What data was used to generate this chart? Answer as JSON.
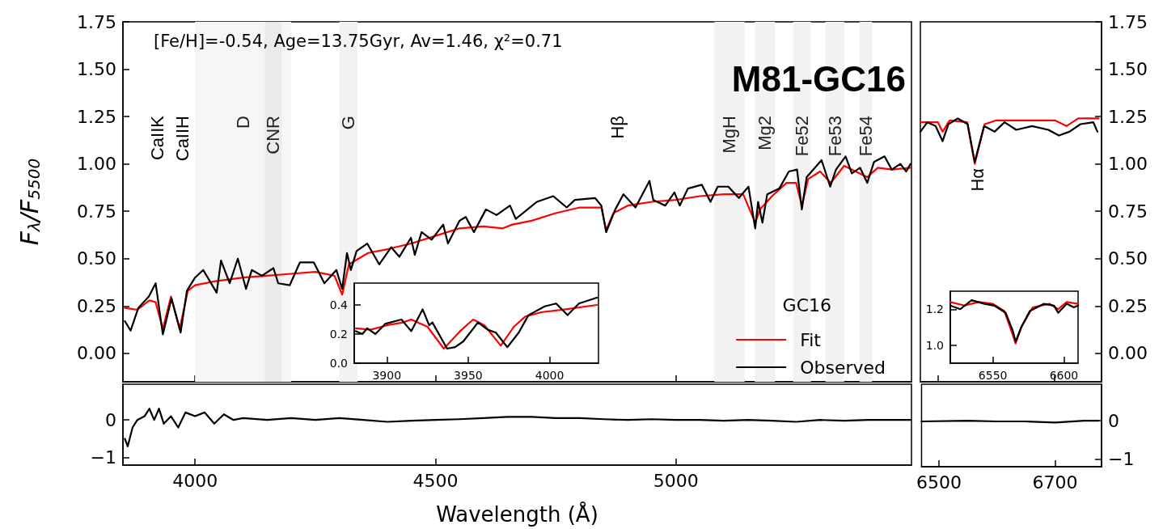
{
  "chart_data": [
    {
      "type": "line",
      "title": "M81-GC16",
      "ylabel": "F$_{λ}$/F$_{5500}$",
      "legend": "bottom right",
      "legend_title": "GC16",
      "tick_labels": "y",
      "xlim": [
        3850,
        5490
      ],
      "xticks": [
        4000,
        4500,
        5000
      ],
      "ylim": [
        -0.15,
        1.75
      ],
      "yticks": [
        {
          "value": 0,
          "label": "0.00"
        },
        {
          "value": 0.25,
          "label": "0.25"
        },
        {
          "value": 0.5,
          "label": "0.50"
        },
        {
          "value": 0.75,
          "label": "0.75"
        },
        {
          "value": 1,
          "label": "1.00"
        },
        {
          "value": 1.25,
          "label": "1.25"
        },
        {
          "value": 1.5,
          "label": "1.50"
        },
        {
          "value": 1.75,
          "label": "1.75"
        }
      ],
      "annotations": [
        "[Fe/H]=-0.54, Age=13.75Gyr, Av=1.46, χ²=0.71",
        "CaIIK",
        "CaIIH",
        "Hβ"
      ],
      "bands": [
        {
          "axis": "x",
          "from": 4000,
          "to": 4200,
          "label": "D",
          "color": "#f6f6f6"
        },
        {
          "axis": "x",
          "from": 4145,
          "to": 4180,
          "label": "CNR",
          "color": "#ebebeb"
        },
        {
          "axis": "x",
          "from": 4300,
          "to": 4338,
          "label": "G",
          "color": "#f2f2f2"
        },
        {
          "axis": "x",
          "from": 5080,
          "to": 5143,
          "label": "MgH",
          "color": "#f2f2f2"
        },
        {
          "axis": "x",
          "from": 5164,
          "to": 5206,
          "label": "Mg2",
          "color": "#f2f2f2"
        },
        {
          "axis": "x",
          "from": 5244,
          "to": 5281,
          "label": "Fe52",
          "color": "#f2f2f2"
        },
        {
          "axis": "x",
          "from": 5311,
          "to": 5350,
          "label": "Fe53",
          "color": "#f2f2f2"
        },
        {
          "axis": "x",
          "from": 5382,
          "to": 5408,
          "label": "Fe54",
          "color": "#f2f2f2"
        }
      ],
      "series": [
        {
          "name": "Fit",
          "color": "#ff0000",
          "x": [
            3854,
            3880,
            3905,
            3918,
            3933,
            3950,
            3968,
            3985,
            4000,
            4040,
            4100,
            4150,
            4200,
            4250,
            4290,
            4306,
            4320,
            4360,
            4400,
            4450,
            4500,
            4550,
            4600,
            4640,
            4660,
            4700,
            4750,
            4800,
            4845,
            4855,
            4870,
            4900,
            4950,
            5000,
            5050,
            5100,
            5140,
            5165,
            5175,
            5200,
            5230,
            5250,
            5262,
            5275,
            5300,
            5322,
            5350,
            5398,
            5420,
            5450,
            5488
          ],
          "values": [
            0.24,
            0.23,
            0.28,
            0.27,
            0.13,
            0.3,
            0.13,
            0.33,
            0.36,
            0.38,
            0.4,
            0.41,
            0.42,
            0.43,
            0.41,
            0.31,
            0.47,
            0.53,
            0.55,
            0.58,
            0.62,
            0.66,
            0.67,
            0.66,
            0.68,
            0.7,
            0.74,
            0.77,
            0.77,
            0.65,
            0.74,
            0.78,
            0.8,
            0.81,
            0.83,
            0.84,
            0.84,
            0.69,
            0.76,
            0.83,
            0.9,
            0.9,
            0.78,
            0.92,
            0.96,
            0.9,
            0.99,
            0.93,
            0.98,
            0.97,
            0.98
          ]
        },
        {
          "name": "Observed",
          "color": "#000000",
          "x": [
            3854,
            3866,
            3882,
            3904,
            3918,
            3933,
            3951,
            3970,
            3983,
            4000,
            4017,
            4045,
            4054,
            4072,
            4089,
            4106,
            4118,
            4139,
            4163,
            4173,
            4197,
            4218,
            4247,
            4269,
            4294,
            4306,
            4316,
            4324,
            4336,
            4358,
            4383,
            4408,
            4425,
            4449,
            4457,
            4471,
            4492,
            4516,
            4526,
            4550,
            4563,
            4580,
            4605,
            4627,
            4655,
            4667,
            4711,
            4745,
            4773,
            4790,
            4832,
            4845,
            4855,
            4874,
            4891,
            4916,
            4945,
            4953,
            4978,
            4997,
            5008,
            5025,
            5054,
            5072,
            5087,
            5109,
            5131,
            5151,
            5165,
            5171,
            5180,
            5190,
            5215,
            5235,
            5252,
            5262,
            5272,
            5303,
            5321,
            5333,
            5353,
            5366,
            5383,
            5398,
            5412,
            5434,
            5449,
            5467,
            5479,
            5488
          ],
          "values": [
            0.17,
            0.12,
            0.24,
            0.3,
            0.37,
            0.1,
            0.29,
            0.11,
            0.33,
            0.4,
            0.44,
            0.32,
            0.49,
            0.37,
            0.5,
            0.34,
            0.44,
            0.41,
            0.45,
            0.37,
            0.36,
            0.48,
            0.48,
            0.37,
            0.44,
            0.34,
            0.53,
            0.44,
            0.54,
            0.58,
            0.47,
            0.56,
            0.51,
            0.61,
            0.52,
            0.64,
            0.6,
            0.68,
            0.58,
            0.7,
            0.72,
            0.64,
            0.76,
            0.73,
            0.78,
            0.71,
            0.8,
            0.83,
            0.77,
            0.81,
            0.82,
            0.78,
            0.64,
            0.76,
            0.84,
            0.77,
            0.91,
            0.81,
            0.78,
            0.85,
            0.78,
            0.87,
            0.89,
            0.8,
            0.88,
            0.88,
            0.82,
            0.88,
            0.66,
            0.8,
            0.69,
            0.84,
            0.87,
            0.96,
            0.97,
            0.76,
            0.93,
            1.02,
            0.88,
            0.97,
            1.04,
            0.95,
            0.98,
            0.9,
            1.01,
            1.04,
            0.97,
            1,
            0.96,
            1
          ]
        }
      ]
    },
    {
      "type": "line",
      "tick_labels": "y",
      "xlim": [
        6470,
        6780
      ],
      "xticks": [
        6500,
        6700
      ],
      "y2lim": [
        -0.15,
        1.75
      ],
      "y2ticks": [
        {
          "value": 0,
          "label": "0.00"
        },
        {
          "value": 0.25,
          "label": "0.25"
        },
        {
          "value": 0.5,
          "label": "0.50"
        },
        {
          "value": 0.75,
          "label": "0.75"
        },
        {
          "value": 1,
          "label": "1.00"
        },
        {
          "value": 1.25,
          "label": "1.25"
        },
        {
          "value": 1.5,
          "label": "1.50"
        },
        {
          "value": 1.75,
          "label": "1.75"
        }
      ],
      "annotations": [
        "Hα"
      ],
      "series": [
        {
          "color": "#ff0000",
          "axis": "y2",
          "x": [
            6470,
            6500,
            6508,
            6520,
            6550,
            6563,
            6580,
            6600,
            6650,
            6700,
            6720,
            6740,
            6775
          ],
          "values": [
            1.22,
            1.22,
            1.17,
            1.23,
            1.22,
            1,
            1.21,
            1.23,
            1.23,
            1.23,
            1.2,
            1.24,
            1.24
          ]
        },
        {
          "color": "#000000",
          "axis": "y2",
          "x": [
            6470,
            6482,
            6496,
            6508,
            6518,
            6534,
            6551,
            6563,
            6579,
            6597,
            6614,
            6634,
            6661,
            6689,
            6707,
            6725,
            6744,
            6766,
            6773
          ],
          "values": [
            1.17,
            1.22,
            1.2,
            1.12,
            1.21,
            1.24,
            1.21,
            1.01,
            1.2,
            1.17,
            1.22,
            1.18,
            1.2,
            1.18,
            1.15,
            1.17,
            1.21,
            1.22,
            1.17
          ]
        }
      ]
    },
    {
      "type": "line",
      "xlabel": "Wavelength (Å)",
      "xlim": [
        3850,
        5490
      ],
      "xticks": [
        4000,
        4500,
        5000
      ],
      "ylim": [
        -1.2,
        0.95
      ],
      "yticks": [
        {
          "value": -1,
          "label": "−1"
        },
        0
      ],
      "series": [
        {
          "color": "#000000",
          "x": [
            3854,
            3860,
            3870,
            3880,
            3895,
            3905,
            3915,
            3925,
            3935,
            3950,
            3965,
            3980,
            4000,
            4020,
            4040,
            4060,
            4080,
            4100,
            4150,
            4200,
            4250,
            4300,
            4350,
            4400,
            4450,
            4500,
            4550,
            4600,
            4650,
            4700,
            4750,
            4800,
            4850,
            4900,
            4950,
            5000,
            5050,
            5100,
            5150,
            5200,
            5250,
            5300,
            5350,
            5400,
            5450,
            5488
          ],
          "values": [
            -0.5,
            -0.7,
            -0.2,
            0,
            0.1,
            0.3,
            0,
            0.3,
            -0.1,
            0.1,
            -0.2,
            0.2,
            0.1,
            0.2,
            -0.1,
            0.15,
            0,
            0.05,
            0,
            0.05,
            0,
            0.05,
            0,
            -0.05,
            -0.02,
            0,
            0.02,
            0.05,
            0.08,
            0.08,
            0.05,
            0.05,
            0.02,
            0,
            0.02,
            0,
            0,
            -0.02,
            0,
            -0.02,
            -0.05,
            0,
            -0.02,
            0,
            0,
            0
          ]
        }
      ]
    },
    {
      "type": "line",
      "xlim": [
        6470,
        6780
      ],
      "xticks": [
        6500,
        6700
      ],
      "y2lim": [
        -1.2,
        0.95
      ],
      "y2ticks": [
        {
          "value": -1,
          "label": "−1"
        },
        0
      ],
      "series": [
        {
          "color": "#000000",
          "axis": "y2",
          "x": [
            6470,
            6550,
            6600,
            6650,
            6700,
            6750,
            6775
          ],
          "values": [
            -0.02,
            0,
            -0.02,
            -0.02,
            -0.05,
            0,
            0
          ]
        }
      ]
    },
    {
      "type": "line",
      "xlim": [
        3880,
        4030
      ],
      "xticks": [
        3900,
        3950,
        4000
      ],
      "ylim": [
        0,
        0.55
      ],
      "yticks": [
        {
          "value": 0,
          "label": "0.0"
        },
        {
          "value": 0.2,
          "label": "0.2"
        },
        {
          "value": 0.4,
          "label": "0.4"
        }
      ],
      "series": [
        {
          "color": "#ff0000",
          "x": [
            3881,
            3890,
            3900,
            3910,
            3915,
            3925,
            3935,
            3945,
            3953,
            3960,
            3970,
            3978,
            3985,
            3995,
            4010,
            4029
          ],
          "values": [
            0.24,
            0.23,
            0.26,
            0.28,
            0.3,
            0.25,
            0.1,
            0.22,
            0.3,
            0.26,
            0.12,
            0.25,
            0.32,
            0.35,
            0.37,
            0.4
          ]
        },
        {
          "color": "#000000",
          "x": [
            3881,
            3885,
            3888,
            3893,
            3899,
            3909,
            3915,
            3922,
            3926,
            3928,
            3937,
            3942,
            3947,
            3956,
            3962,
            3967,
            3974,
            3981,
            3987,
            3997,
            4004,
            4011,
            4018,
            4029
          ],
          "values": [
            0.22,
            0.2,
            0.24,
            0.2,
            0.27,
            0.3,
            0.22,
            0.37,
            0.26,
            0.28,
            0.1,
            0.11,
            0.15,
            0.28,
            0.23,
            0.21,
            0.11,
            0.21,
            0.33,
            0.39,
            0.41,
            0.33,
            0.41,
            0.45
          ]
        }
      ]
    },
    {
      "type": "line",
      "xlim": [
        6520,
        6610
      ],
      "xticks": [
        6550,
        6600
      ],
      "ylim": [
        0.9,
        1.3
      ],
      "yticks": [
        {
          "value": 1,
          "label": "1.0"
        },
        {
          "value": 1.2,
          "label": "1.2"
        }
      ],
      "series": [
        {
          "color": "#ff0000",
          "x": [
            6520,
            6530,
            6540,
            6550,
            6558,
            6563,
            6566,
            6570,
            6578,
            6590,
            6596,
            6602,
            6610
          ],
          "values": [
            1.24,
            1.22,
            1.24,
            1.23,
            1.19,
            1.08,
            1.01,
            1.1,
            1.21,
            1.23,
            1.2,
            1.24,
            1.23
          ]
        },
        {
          "color": "#000000",
          "x": [
            6520,
            6527,
            6535,
            6544,
            6551,
            6559,
            6564,
            6566,
            6570,
            6576,
            6586,
            6593,
            6596,
            6602,
            6607,
            6610
          ],
          "values": [
            1.22,
            1.2,
            1.25,
            1.23,
            1.22,
            1.18,
            1.08,
            1.02,
            1.1,
            1.19,
            1.23,
            1.22,
            1.18,
            1.23,
            1.21,
            1.22
          ]
        }
      ]
    }
  ]
}
